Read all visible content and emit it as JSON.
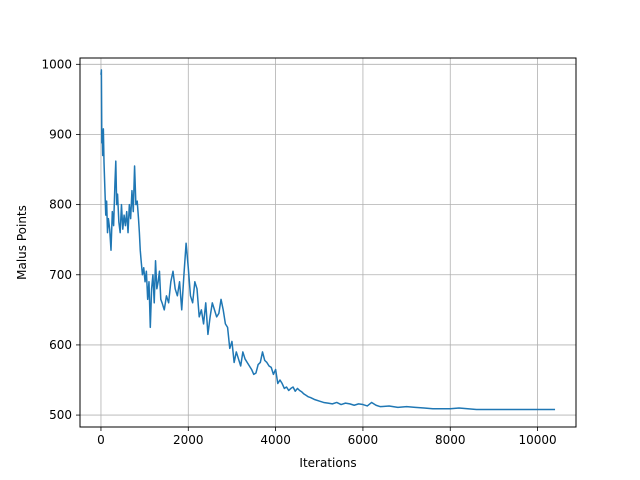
{
  "chart_data": {
    "type": "line",
    "title": "",
    "xlabel": "Iterations",
    "ylabel": "Malus Points",
    "xlim": [
      -480,
      10880
    ],
    "ylim": [
      483,
      1009
    ],
    "xticks": [
      0,
      2000,
      4000,
      6000,
      8000,
      10000
    ],
    "yticks": [
      500,
      600,
      700,
      800,
      900,
      1000
    ],
    "xtick_labels": [
      "0",
      "2000",
      "4000",
      "6000",
      "8000",
      "10000"
    ],
    "ytick_labels": [
      "500",
      "600",
      "700",
      "800",
      "900",
      "1000"
    ],
    "grid": true,
    "legend": "none",
    "colors": {
      "line": "#1f77b4",
      "grid": "#b0b0b0",
      "axes": "#000000"
    },
    "series": [
      {
        "name": "",
        "x": [
          0,
          10,
          20,
          30,
          40,
          55,
          70,
          90,
          110,
          130,
          150,
          170,
          200,
          230,
          260,
          290,
          320,
          340,
          360,
          380,
          410,
          440,
          470,
          500,
          530,
          560,
          590,
          620,
          650,
          680,
          710,
          740,
          770,
          800,
          830,
          860,
          880,
          900,
          920,
          950,
          980,
          1010,
          1040,
          1070,
          1100,
          1130,
          1160,
          1190,
          1220,
          1250,
          1280,
          1310,
          1340,
          1370,
          1400,
          1450,
          1500,
          1550,
          1600,
          1650,
          1700,
          1750,
          1800,
          1850,
          1900,
          1950,
          2000,
          2050,
          2100,
          2150,
          2200,
          2250,
          2300,
          2350,
          2400,
          2450,
          2500,
          2550,
          2600,
          2650,
          2700,
          2750,
          2800,
          2850,
          2900,
          2950,
          3000,
          3050,
          3100,
          3150,
          3200,
          3250,
          3300,
          3350,
          3400,
          3450,
          3500,
          3550,
          3600,
          3650,
          3700,
          3750,
          3800,
          3850,
          3900,
          3950,
          4000,
          4050,
          4100,
          4150,
          4200,
          4250,
          4300,
          4350,
          4400,
          4450,
          4500,
          4550,
          4600,
          4650,
          4700,
          4750,
          4800,
          4900,
          5000,
          5100,
          5200,
          5300,
          5400,
          5500,
          5600,
          5700,
          5800,
          5900,
          6000,
          6100,
          6200,
          6300,
          6400,
          6600,
          6800,
          7000,
          7200,
          7400,
          7600,
          7800,
          8000,
          8200,
          8400,
          8600,
          8800,
          9000,
          9200,
          9400,
          9600,
          9800,
          10000,
          10200,
          10400
        ],
        "values": [
          985,
          992,
          888,
          905,
          870,
          908,
          860,
          822,
          785,
          805,
          760,
          780,
          765,
          735,
          790,
          770,
          830,
          862,
          800,
          815,
          775,
          760,
          800,
          765,
          785,
          770,
          790,
          760,
          800,
          780,
          820,
          790,
          855,
          800,
          805,
          780,
          760,
          735,
          720,
          700,
          710,
          690,
          705,
          665,
          690,
          625,
          680,
          700,
          660,
          720,
          680,
          690,
          705,
          665,
          660,
          650,
          670,
          660,
          690,
          705,
          680,
          670,
          690,
          650,
          700,
          745,
          710,
          670,
          660,
          690,
          680,
          640,
          650,
          630,
          660,
          615,
          640,
          660,
          650,
          640,
          645,
          665,
          650,
          630,
          625,
          595,
          605,
          575,
          590,
          580,
          570,
          590,
          580,
          575,
          570,
          565,
          558,
          560,
          572,
          575,
          590,
          578,
          575,
          570,
          568,
          558,
          565,
          545,
          550,
          545,
          538,
          540,
          535,
          538,
          540,
          534,
          538,
          535,
          533,
          530,
          528,
          526,
          525,
          522,
          520,
          518,
          517,
          516,
          518,
          515,
          517,
          516,
          514,
          516,
          515,
          513,
          518,
          514,
          512,
          513,
          511,
          512,
          511,
          510,
          509,
          509,
          509,
          510,
          509,
          508,
          508,
          508,
          508,
          508,
          508,
          508,
          508,
          508,
          508
        ]
      }
    ]
  }
}
